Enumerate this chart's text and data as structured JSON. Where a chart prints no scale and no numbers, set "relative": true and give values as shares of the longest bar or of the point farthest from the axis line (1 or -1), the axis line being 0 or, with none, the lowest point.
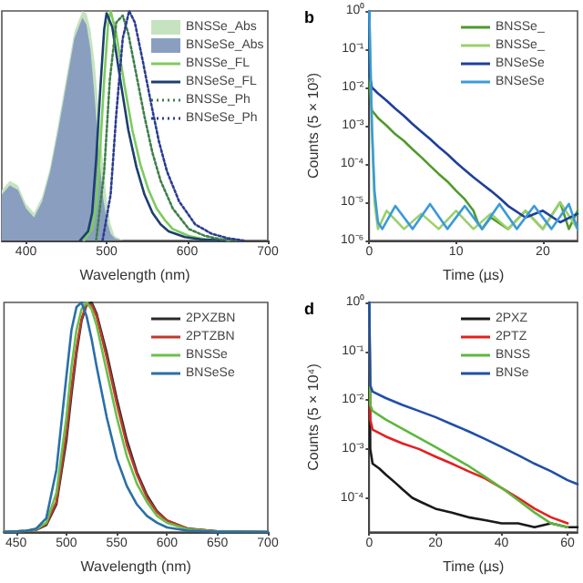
{
  "chart_data": [
    {
      "type": "line",
      "xlabel": "Wavelength (nm)",
      "relative": true,
      "xlim": [
        370,
        700
      ],
      "xticks": [
        400,
        500,
        600,
        700
      ],
      "legend": "top right",
      "marker": "none",
      "series": [
        {
          "name": "BNSSe_Abs",
          "type": "area",
          "color": "#c5e3bf",
          "x": [
            370,
            380,
            390,
            400,
            410,
            420,
            430,
            440,
            450,
            460,
            470,
            475,
            480,
            485,
            490,
            495,
            500,
            505,
            510,
            520,
            700
          ],
          "values": [
            0.22,
            0.26,
            0.24,
            0.16,
            0.12,
            0.19,
            0.32,
            0.51,
            0.71,
            0.91,
            1.0,
            0.99,
            0.92,
            0.78,
            0.58,
            0.36,
            0.18,
            0.07,
            0.02,
            0,
            0
          ]
        },
        {
          "name": "BNSeSe_Abs",
          "type": "area",
          "color": "#8a9fc0",
          "x": [
            370,
            380,
            390,
            400,
            410,
            420,
            430,
            440,
            450,
            460,
            470,
            475,
            480,
            485,
            490,
            495,
            500,
            505,
            510,
            520,
            700
          ],
          "values": [
            0.2,
            0.24,
            0.22,
            0.14,
            0.1,
            0.17,
            0.3,
            0.48,
            0.68,
            0.88,
            0.97,
            0.94,
            0.83,
            0.63,
            0.4,
            0.2,
            0.09,
            0.03,
            0.01,
            0,
            0
          ]
        },
        {
          "name": "BNSSe_FL",
          "color": "#7ccc5c",
          "line_style": "solid",
          "x": [
            472,
            482,
            487,
            492,
            497,
            502,
            505,
            512,
            522,
            532,
            542,
            552,
            562,
            572,
            582,
            602,
            622,
            652
          ],
          "values": [
            0,
            0.05,
            0.15,
            0.4,
            0.7,
            0.95,
            1.0,
            0.9,
            0.68,
            0.48,
            0.33,
            0.22,
            0.14,
            0.09,
            0.05,
            0.02,
            0.005,
            0
          ]
        },
        {
          "name": "BNSeSe_FL",
          "color": "#1d3f6e",
          "line_style": "solid",
          "x": [
            467,
            477,
            482,
            487,
            492,
            497,
            500,
            507,
            517,
            527,
            537,
            547,
            557,
            567,
            577,
            597,
            617,
            647
          ],
          "values": [
            0,
            0.04,
            0.12,
            0.35,
            0.65,
            0.92,
            0.99,
            0.93,
            0.7,
            0.48,
            0.32,
            0.2,
            0.12,
            0.07,
            0.04,
            0.015,
            0.005,
            0
          ]
        },
        {
          "name": "BNSSe_Ph",
          "color": "#3f7f4a",
          "line_style": "dotted",
          "x": [
            487,
            497,
            504,
            512,
            520,
            527,
            537,
            547,
            557,
            567,
            582,
            602,
            622,
            642,
            662
          ],
          "values": [
            0,
            0.3,
            0.7,
            0.95,
            0.98,
            0.9,
            0.72,
            0.54,
            0.38,
            0.26,
            0.14,
            0.05,
            0.02,
            0.005,
            0
          ]
        },
        {
          "name": "BNSeSe_Ph",
          "color": "#2b3d8f",
          "line_style": "dotted",
          "x": [
            495,
            505,
            512,
            520,
            528,
            535,
            545,
            555,
            565,
            575,
            590,
            610,
            630,
            650,
            670
          ],
          "values": [
            0,
            0.2,
            0.55,
            0.88,
            1.0,
            0.95,
            0.78,
            0.6,
            0.43,
            0.3,
            0.17,
            0.07,
            0.03,
            0.01,
            0
          ]
        }
      ]
    },
    {
      "type": "line",
      "title": "b",
      "xlabel": "Time (µs)",
      "ylabel": "Counts (5 × 10³)",
      "log": "y",
      "xlim": [
        0,
        24
      ],
      "xticks": [
        0,
        10,
        20
      ],
      "ylim": [
        1e-06,
        1
      ],
      "yticks": [
        {
          "value": 1,
          "label": "10⁰"
        },
        {
          "value": 0.1,
          "label": "10⁻¹"
        },
        {
          "value": 0.01,
          "label": "10⁻²"
        },
        {
          "value": 0.001,
          "label": "10⁻³"
        },
        {
          "value": 0.0001,
          "label": "10⁻⁴"
        },
        {
          "value": 1e-05,
          "label": "10⁻⁵"
        },
        {
          "value": 1e-06,
          "label": "10⁻⁶"
        }
      ],
      "legend": "top right",
      "marker": "none",
      "series": [
        {
          "name": "BNSSe_",
          "color": "#4f9a2c",
          "x": [
            0,
            0.05,
            0.3,
            1,
            2,
            3,
            4,
            5,
            6,
            7,
            8,
            9,
            10,
            11,
            12,
            12.5,
            13,
            14,
            16,
            18,
            20,
            22,
            23,
            24
          ],
          "values": [
            1,
            0.01,
            0.0025,
            0.0016,
            0.001,
            0.0006,
            0.0004,
            0.00024,
            0.00015,
            9e-05,
            5.5e-05,
            3.5e-05,
            2e-05,
            1.2e-05,
            6e-06,
            3e-06,
            2e-06,
            4e-06,
            2e-06,
            6e-06,
            2e-06,
            1e-05,
            2e-06,
            6e-06
          ]
        },
        {
          "name": "BNSSe_",
          "color": "#9ad06a",
          "x": [
            0,
            0.3,
            0.6,
            1,
            2,
            4,
            6,
            8,
            10,
            12,
            14,
            16,
            18,
            20,
            22,
            24
          ],
          "values": [
            1,
            0.001,
            1e-05,
            2e-06,
            6e-06,
            2e-06,
            5e-06,
            2e-06,
            6e-06,
            2e-06,
            5e-06,
            2e-06,
            6e-06,
            2e-06,
            1e-05,
            2e-06
          ]
        },
        {
          "name": "BNSeSe",
          "color": "#1f3f99",
          "x": [
            0,
            0.05,
            0.3,
            1,
            2,
            3,
            4,
            5,
            6,
            7,
            8,
            9,
            10,
            11,
            12,
            13,
            14,
            15,
            16,
            18,
            20,
            22,
            24
          ],
          "values": [
            1,
            0.02,
            0.01,
            0.007,
            0.0045,
            0.0028,
            0.0018,
            0.0011,
            0.0007,
            0.00045,
            0.00028,
            0.00018,
            0.00011,
            7e-05,
            4.5e-05,
            3e-05,
            2e-05,
            1.3e-05,
            8e-06,
            4e-06,
            6e-06,
            3e-06,
            5e-06
          ]
        },
        {
          "name": "BNSeSe",
          "color": "#3a9ad9",
          "x": [
            0,
            0.3,
            0.6,
            1,
            1.5,
            3,
            5,
            7,
            9,
            11,
            13,
            15,
            17,
            19,
            21,
            23,
            24
          ],
          "values": [
            1,
            0.001,
            2e-05,
            3e-06,
            2e-06,
            8e-06,
            2e-06,
            9e-06,
            2e-06,
            8e-06,
            2e-06,
            9e-06,
            2e-06,
            8e-06,
            2e-06,
            9e-06,
            2e-06
          ]
        }
      ]
    },
    {
      "type": "line",
      "xlabel": "Wavelength (nm)",
      "relative": true,
      "xlim": [
        438,
        700
      ],
      "xticks": [
        450,
        500,
        550,
        600,
        650,
        700
      ],
      "legend": "top right",
      "marker": "none",
      "x": [
        438,
        460,
        470,
        480,
        490,
        500,
        505,
        510,
        515,
        520,
        525,
        530,
        540,
        550,
        560,
        570,
        580,
        590,
        600,
        620,
        650,
        700
      ],
      "series": [
        {
          "name": "2PXZBN",
          "color": "#2a2a2a",
          "values": [
            0,
            0.005,
            0.01,
            0.03,
            0.12,
            0.4,
            0.6,
            0.78,
            0.92,
            0.99,
            1.0,
            0.95,
            0.78,
            0.58,
            0.4,
            0.26,
            0.16,
            0.09,
            0.05,
            0.015,
            0.003,
            0
          ]
        },
        {
          "name": "2PTZBN",
          "color": "#c0392b",
          "values": [
            0,
            0.005,
            0.01,
            0.035,
            0.13,
            0.43,
            0.63,
            0.8,
            0.93,
            0.99,
            0.99,
            0.94,
            0.76,
            0.56,
            0.38,
            0.25,
            0.15,
            0.085,
            0.05,
            0.015,
            0.003,
            0
          ]
        },
        {
          "name": "BNSSe",
          "color": "#6abf4b",
          "values": [
            0,
            0.005,
            0.012,
            0.04,
            0.17,
            0.5,
            0.72,
            0.88,
            0.97,
            1.0,
            0.97,
            0.9,
            0.7,
            0.5,
            0.33,
            0.21,
            0.13,
            0.07,
            0.04,
            0.012,
            0.002,
            0
          ]
        },
        {
          "name": "BNSeSe",
          "color": "#2a6fa8",
          "values": [
            0,
            0.005,
            0.015,
            0.06,
            0.27,
            0.68,
            0.88,
            0.98,
            1.0,
            0.94,
            0.84,
            0.72,
            0.5,
            0.32,
            0.2,
            0.12,
            0.07,
            0.04,
            0.02,
            0.006,
            0.001,
            0
          ]
        }
      ]
    },
    {
      "type": "line",
      "title": "d",
      "xlabel": "Time (µs)",
      "ylabel": "Counts (5 × 10⁴)",
      "log": "y",
      "xlim": [
        0,
        63
      ],
      "xticks": [
        0,
        20,
        40,
        60
      ],
      "ylim": [
        2e-05,
        1
      ],
      "yticks": [
        {
          "value": 1,
          "label": "10⁰"
        },
        {
          "value": 0.1,
          "label": "10⁻¹"
        },
        {
          "value": 0.01,
          "label": "10⁻²"
        },
        {
          "value": 0.001,
          "label": "10⁻³"
        },
        {
          "value": 0.0001,
          "label": "10⁻⁴"
        }
      ],
      "legend": "top right",
      "marker": "none",
      "series": [
        {
          "name": "2PXZ",
          "color": "#1a1a1a",
          "x": [
            0,
            0.3,
            1,
            3,
            5,
            8,
            10,
            13,
            16,
            20,
            25,
            30,
            35,
            40,
            45,
            50,
            55,
            60,
            63
          ],
          "values": [
            1,
            0.001,
            0.0005,
            0.0004,
            0.0003,
            0.0002,
            0.00015,
            0.0001,
            8e-05,
            6e-05,
            5e-05,
            4e-05,
            3.5e-05,
            3e-05,
            3e-05,
            2.5e-05,
            3e-05,
            2.5e-05,
            2.5e-05
          ]
        },
        {
          "name": "2PTZ",
          "color": "#e32020",
          "x": [
            0,
            0.3,
            1,
            5,
            10,
            15,
            20,
            25,
            30,
            35,
            40,
            45,
            50,
            55,
            60
          ],
          "values": [
            1,
            0.004,
            0.0025,
            0.0018,
            0.0013,
            0.001,
            0.0007,
            0.0005,
            0.00035,
            0.00025,
            0.00016,
            0.0001,
            6e-05,
            4e-05,
            3e-05
          ]
        },
        {
          "name": "BNSS",
          "color": "#5cb83c",
          "x": [
            0,
            0.3,
            1,
            5,
            10,
            15,
            20,
            25,
            30,
            35,
            40,
            45,
            50,
            55,
            60
          ],
          "values": [
            1,
            0.008,
            0.006,
            0.004,
            0.0026,
            0.0017,
            0.0011,
            0.0007,
            0.00045,
            0.00027,
            0.00016,
            9e-05,
            5e-05,
            3e-05,
            2.5e-05
          ]
        },
        {
          "name": "BNSe",
          "color": "#1f4fa8",
          "x": [
            0,
            0.3,
            1,
            5,
            10,
            15,
            20,
            25,
            30,
            35,
            40,
            45,
            50,
            55,
            60,
            63
          ],
          "values": [
            1,
            0.02,
            0.015,
            0.011,
            0.008,
            0.006,
            0.0045,
            0.0032,
            0.0023,
            0.0016,
            0.0011,
            0.00075,
            0.0005,
            0.00035,
            0.00023,
            0.00019
          ]
        }
      ]
    }
  ]
}
